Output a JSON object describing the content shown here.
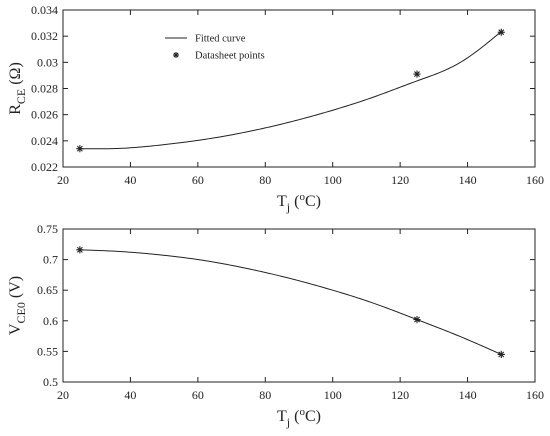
{
  "chart_data": [
    {
      "type": "line",
      "xlabel": {
        "main": "T",
        "sub": "j",
        "unit": " (",
        "sup": "o",
        "unit_tail": "C)"
      },
      "ylabel": {
        "main": "R",
        "sub": "CE",
        "unit": " (Ω)"
      },
      "xlim": [
        20,
        160
      ],
      "ylim": [
        0.022,
        0.034
      ],
      "xticks": [
        20,
        40,
        60,
        80,
        100,
        120,
        140,
        160
      ],
      "yticks": [
        0.022,
        0.024,
        0.026,
        0.028,
        0.03,
        0.032,
        0.034
      ],
      "ytick_labels": [
        "0.022",
        "0.024",
        "0.026",
        "0.028",
        "0.03",
        "0.032",
        "0.034"
      ],
      "grid": false,
      "legend_placement": "top-left",
      "legend": [
        "Fitted curve",
        "Datasheet points"
      ],
      "series": [
        {
          "name": "Fitted curve",
          "kind": "line",
          "x": [
            25,
            37.5,
            50,
            62.5,
            75,
            87.5,
            100,
            112.5,
            125,
            137.5,
            150
          ],
          "y": [
            0.0234,
            0.02343,
            0.02371,
            0.02413,
            0.02471,
            0.02545,
            0.02634,
            0.02738,
            0.02858,
            0.02994,
            0.03236
          ]
        },
        {
          "name": "Datasheet points",
          "kind": "markers",
          "x": [
            25,
            125,
            150
          ],
          "y": [
            0.0234,
            0.0291,
            0.0323
          ]
        }
      ]
    },
    {
      "type": "line",
      "xlabel": {
        "main": "T",
        "sub": "j",
        "unit": " (",
        "sup": "o",
        "unit_tail": "C)"
      },
      "ylabel": {
        "main": "V",
        "sub": "CE0",
        "unit": " (V)"
      },
      "xlim": [
        20,
        160
      ],
      "ylim": [
        0.5,
        0.75
      ],
      "xticks": [
        20,
        40,
        60,
        80,
        100,
        120,
        140,
        160
      ],
      "yticks": [
        0.5,
        0.55,
        0.6,
        0.65,
        0.7,
        0.75
      ],
      "ytick_labels": [
        "0.5",
        "0.55",
        "0.6",
        "0.65",
        "0.7",
        "0.75"
      ],
      "grid": false,
      "series": [
        {
          "kind": "line",
          "x": [
            25,
            37.5,
            50,
            62.5,
            75,
            87.5,
            100,
            112.5,
            125,
            137.5,
            150
          ],
          "y": [
            0.716,
            0.713,
            0.707,
            0.698,
            0.685,
            0.669,
            0.65,
            0.628,
            0.602,
            0.575,
            0.545
          ]
        },
        {
          "kind": "markers",
          "x": [
            25,
            125,
            150
          ],
          "y": [
            0.716,
            0.602,
            0.545
          ]
        }
      ]
    }
  ]
}
